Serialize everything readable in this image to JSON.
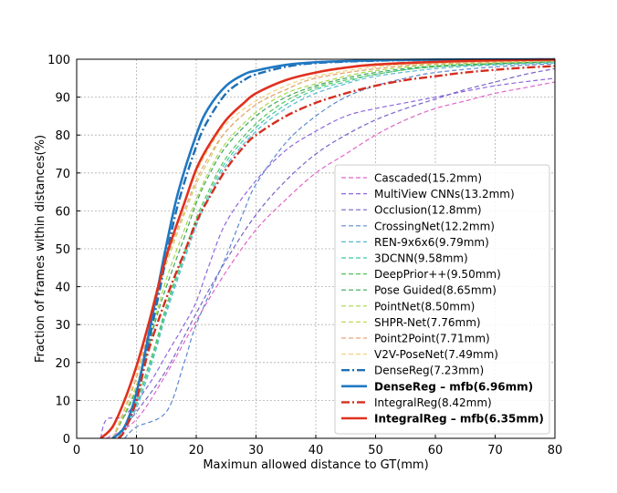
{
  "chart_data": {
    "type": "line",
    "title": "",
    "xlabel": "Maximun allowed distance to GT(mm)",
    "ylabel": "Fraction of  frames within distances(%)",
    "xlim": [
      0,
      80
    ],
    "ylim": [
      0,
      100
    ],
    "xticks": [
      0,
      10,
      20,
      30,
      40,
      50,
      60,
      70,
      80
    ],
    "yticks": [
      0,
      10,
      20,
      30,
      40,
      50,
      60,
      70,
      80,
      90,
      100
    ],
    "grid": true,
    "legend_position": "lower-right",
    "series": [
      {
        "name": "Cascaded(15.2mm)",
        "color": "#e066cc",
        "style": "dashed",
        "width": 1.2,
        "bold": false,
        "points": [
          [
            5,
            0
          ],
          [
            10,
            5
          ],
          [
            15,
            17
          ],
          [
            20,
            31
          ],
          [
            25,
            44
          ],
          [
            30,
            55
          ],
          [
            35,
            63
          ],
          [
            40,
            70
          ],
          [
            45,
            75
          ],
          [
            50,
            80
          ],
          [
            55,
            84
          ],
          [
            60,
            87
          ],
          [
            65,
            89
          ],
          [
            70,
            91
          ],
          [
            75,
            92.5
          ],
          [
            80,
            94
          ]
        ]
      },
      {
        "name": "MultiView CNNs(13.2mm)",
        "color": "#8f66dd",
        "style": "dashed",
        "width": 1.2,
        "bold": false,
        "points": [
          [
            4,
            0
          ],
          [
            5,
            5
          ],
          [
            8,
            6
          ],
          [
            12,
            14
          ],
          [
            15,
            22
          ],
          [
            18,
            30
          ],
          [
            20,
            36
          ],
          [
            22,
            45
          ],
          [
            25,
            57
          ],
          [
            30,
            68
          ],
          [
            35,
            76
          ],
          [
            40,
            81
          ],
          [
            45,
            85
          ],
          [
            50,
            87
          ],
          [
            55,
            88.5
          ],
          [
            60,
            90
          ],
          [
            70,
            93
          ],
          [
            80,
            95
          ]
        ]
      },
      {
        "name": "Occlusion(12.8mm)",
        "color": "#7a63c8",
        "style": "dashed",
        "width": 1.2,
        "bold": false,
        "points": [
          [
            6,
            0
          ],
          [
            8,
            3
          ],
          [
            10,
            7
          ],
          [
            15,
            18
          ],
          [
            20,
            33
          ],
          [
            25,
            47
          ],
          [
            30,
            59
          ],
          [
            35,
            68
          ],
          [
            40,
            75
          ],
          [
            45,
            80
          ],
          [
            50,
            84
          ],
          [
            55,
            87
          ],
          [
            60,
            89.5
          ],
          [
            65,
            92
          ],
          [
            70,
            94
          ],
          [
            75,
            96
          ],
          [
            80,
            97.5
          ]
        ]
      },
      {
        "name": "CrossingNet(12.2mm)",
        "color": "#5b88cc",
        "style": "dashed",
        "width": 1.2,
        "bold": false,
        "points": [
          [
            8,
            0
          ],
          [
            10,
            3
          ],
          [
            15,
            7
          ],
          [
            18,
            20
          ],
          [
            20,
            30
          ],
          [
            25,
            48
          ],
          [
            28,
            60
          ],
          [
            30,
            67
          ],
          [
            35,
            78
          ],
          [
            40,
            85
          ],
          [
            45,
            90
          ],
          [
            50,
            93
          ],
          [
            55,
            95
          ],
          [
            60,
            96.5
          ],
          [
            70,
            98
          ],
          [
            80,
            98.8
          ]
        ]
      },
      {
        "name": "REN-9x6x6(9.79mm)",
        "color": "#55b8cc",
        "style": "dashed",
        "width": 1.2,
        "bold": false,
        "points": [
          [
            7,
            0
          ],
          [
            10,
            8
          ],
          [
            13,
            22
          ],
          [
            15,
            33
          ],
          [
            18,
            47
          ],
          [
            20,
            56
          ],
          [
            22,
            63
          ],
          [
            25,
            72
          ],
          [
            30,
            81
          ],
          [
            35,
            87
          ],
          [
            40,
            91
          ],
          [
            45,
            93.5
          ],
          [
            50,
            95.5
          ],
          [
            60,
            97.5
          ],
          [
            70,
            98.5
          ],
          [
            80,
            99
          ]
        ]
      },
      {
        "name": "3DCNN(9.58mm)",
        "color": "#3ec7a7",
        "style": "dashed",
        "width": 1.2,
        "bold": false,
        "points": [
          [
            7,
            0
          ],
          [
            10,
            9
          ],
          [
            13,
            23
          ],
          [
            15,
            34
          ],
          [
            18,
            48
          ],
          [
            20,
            57
          ],
          [
            22,
            64
          ],
          [
            25,
            73
          ],
          [
            30,
            82
          ],
          [
            35,
            88
          ],
          [
            40,
            92
          ],
          [
            45,
            94
          ],
          [
            50,
            96
          ],
          [
            60,
            98
          ],
          [
            80,
            99.3
          ]
        ]
      },
      {
        "name": "DeepPrior++(9.50mm)",
        "color": "#55c255",
        "style": "dashed",
        "width": 1.2,
        "bold": false,
        "points": [
          [
            7,
            0
          ],
          [
            10,
            10
          ],
          [
            13,
            24
          ],
          [
            15,
            35
          ],
          [
            18,
            49
          ],
          [
            20,
            58
          ],
          [
            22,
            65
          ],
          [
            25,
            74
          ],
          [
            30,
            83
          ],
          [
            35,
            89
          ],
          [
            40,
            92.5
          ],
          [
            45,
            94.5
          ],
          [
            50,
            96
          ],
          [
            60,
            98
          ],
          [
            80,
            99.3
          ]
        ]
      },
      {
        "name": "Pose Guided(8.65mm)",
        "color": "#3aa65a",
        "style": "dashed",
        "width": 1.2,
        "bold": false,
        "points": [
          [
            6,
            0
          ],
          [
            10,
            13
          ],
          [
            13,
            30
          ],
          [
            15,
            40
          ],
          [
            18,
            53
          ],
          [
            20,
            62
          ],
          [
            22,
            69
          ],
          [
            25,
            77
          ],
          [
            30,
            85
          ],
          [
            35,
            90
          ],
          [
            40,
            93
          ],
          [
            45,
            95
          ],
          [
            50,
            96.5
          ],
          [
            60,
            98.2
          ],
          [
            80,
            99.4
          ]
        ]
      },
      {
        "name": "PointNet(8.50mm)",
        "color": "#a6d64a",
        "style": "dashed",
        "width": 1.2,
        "bold": false,
        "points": [
          [
            6,
            0
          ],
          [
            10,
            14
          ],
          [
            13,
            31
          ],
          [
            15,
            42
          ],
          [
            18,
            55
          ],
          [
            20,
            63
          ],
          [
            22,
            70
          ],
          [
            25,
            78
          ],
          [
            30,
            86
          ],
          [
            35,
            91
          ],
          [
            40,
            93.5
          ],
          [
            45,
            95.5
          ],
          [
            50,
            97
          ],
          [
            60,
            98.5
          ],
          [
            80,
            99.5
          ]
        ]
      },
      {
        "name": "SHPR-Net(7.76mm)",
        "color": "#c8d45e",
        "style": "dashed",
        "width": 1.2,
        "bold": false,
        "points": [
          [
            6,
            0
          ],
          [
            10,
            16
          ],
          [
            13,
            35
          ],
          [
            15,
            46
          ],
          [
            18,
            59
          ],
          [
            20,
            67
          ],
          [
            22,
            73
          ],
          [
            25,
            81
          ],
          [
            30,
            88
          ],
          [
            35,
            92
          ],
          [
            40,
            95
          ],
          [
            50,
            97.5
          ],
          [
            60,
            98.8
          ],
          [
            80,
            99.6
          ]
        ]
      },
      {
        "name": "Point2Point(7.71mm)",
        "color": "#e8a47a",
        "style": "dashed",
        "width": 1.2,
        "bold": false,
        "points": [
          [
            6,
            0
          ],
          [
            10,
            16
          ],
          [
            13,
            35
          ],
          [
            15,
            47
          ],
          [
            18,
            60
          ],
          [
            20,
            68
          ],
          [
            22,
            74
          ],
          [
            25,
            81
          ],
          [
            30,
            88
          ],
          [
            35,
            92
          ],
          [
            40,
            95
          ],
          [
            50,
            97.5
          ],
          [
            60,
            98.8
          ],
          [
            80,
            99.6
          ]
        ]
      },
      {
        "name": "V2V-PoseNet(7.49mm)",
        "color": "#f2d27a",
        "style": "dashed",
        "width": 1.2,
        "bold": false,
        "points": [
          [
            6,
            0
          ],
          [
            10,
            17
          ],
          [
            13,
            37
          ],
          [
            15,
            49
          ],
          [
            18,
            62
          ],
          [
            20,
            70
          ],
          [
            22,
            76
          ],
          [
            25,
            83
          ],
          [
            30,
            89
          ],
          [
            35,
            93
          ],
          [
            40,
            95.5
          ],
          [
            50,
            98
          ],
          [
            60,
            99
          ],
          [
            80,
            99.7
          ]
        ]
      },
      {
        "name": "DenseReg(7.23mm)",
        "color": "#1f6fb5",
        "style": "dashdot",
        "width": 2.4,
        "bold": false,
        "points": [
          [
            7,
            0
          ],
          [
            8,
            2
          ],
          [
            10,
            10
          ],
          [
            12,
            25
          ],
          [
            14,
            40
          ],
          [
            15,
            48
          ],
          [
            17,
            62
          ],
          [
            20,
            77
          ],
          [
            22,
            84
          ],
          [
            25,
            91
          ],
          [
            28,
            94.5
          ],
          [
            30,
            96
          ],
          [
            35,
            98
          ],
          [
            40,
            99
          ],
          [
            50,
            99.6
          ],
          [
            60,
            99.8
          ],
          [
            80,
            100
          ]
        ]
      },
      {
        "name": "DenseReg – mfb(6.96mm)",
        "color": "#1f78c1",
        "style": "solid",
        "width": 2.6,
        "bold": true,
        "points": [
          [
            6,
            0
          ],
          [
            8,
            3
          ],
          [
            10,
            12
          ],
          [
            12,
            27
          ],
          [
            14,
            43
          ],
          [
            15,
            51
          ],
          [
            17,
            65
          ],
          [
            20,
            80
          ],
          [
            22,
            87
          ],
          [
            25,
            93
          ],
          [
            28,
            96
          ],
          [
            30,
            97
          ],
          [
            35,
            98.5
          ],
          [
            40,
            99.2
          ],
          [
            50,
            99.7
          ],
          [
            60,
            99.9
          ],
          [
            80,
            100
          ]
        ]
      },
      {
        "name": "IntegralReg(8.42mm)",
        "color": "#d42e20",
        "style": "dashdot",
        "width": 2.4,
        "bold": false,
        "points": [
          [
            7,
            0
          ],
          [
            8,
            2
          ],
          [
            10,
            10
          ],
          [
            12,
            23
          ],
          [
            15,
            37
          ],
          [
            18,
            49
          ],
          [
            20,
            57
          ],
          [
            22,
            63
          ],
          [
            25,
            71
          ],
          [
            28,
            77
          ],
          [
            30,
            80
          ],
          [
            35,
            85
          ],
          [
            40,
            88.5
          ],
          [
            45,
            91
          ],
          [
            50,
            93
          ],
          [
            55,
            94.5
          ],
          [
            60,
            95.5
          ],
          [
            65,
            96.5
          ],
          [
            70,
            97.2
          ],
          [
            75,
            97.8
          ],
          [
            80,
            98.2
          ]
        ]
      },
      {
        "name": "IntegralReg – mfb(6.35mm)",
        "color": "#e0301e",
        "style": "solid",
        "width": 2.6,
        "bold": true,
        "points": [
          [
            4,
            0
          ],
          [
            6,
            3
          ],
          [
            8,
            10
          ],
          [
            10,
            19
          ],
          [
            12,
            30
          ],
          [
            15,
            48
          ],
          [
            18,
            62
          ],
          [
            20,
            71
          ],
          [
            22,
            77
          ],
          [
            25,
            84
          ],
          [
            28,
            88.5
          ],
          [
            30,
            91
          ],
          [
            35,
            94.5
          ],
          [
            40,
            96.5
          ],
          [
            45,
            97.8
          ],
          [
            50,
            98.6
          ],
          [
            60,
            99.3
          ],
          [
            70,
            99.7
          ],
          [
            80,
            99.9
          ]
        ]
      }
    ]
  }
}
